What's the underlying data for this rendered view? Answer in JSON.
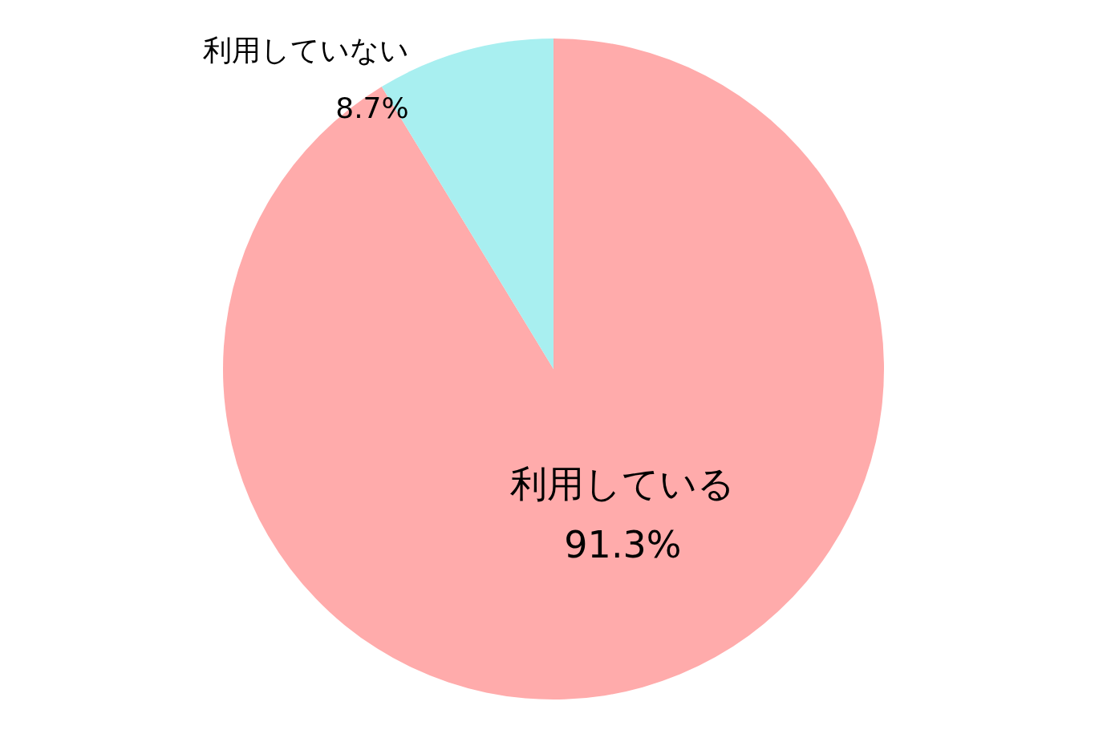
{
  "chart_data": {
    "type": "pie",
    "categories": [
      "利用している",
      "利用していない"
    ],
    "values": [
      91.3,
      8.7
    ],
    "colors": [
      "#ffabab",
      "#a8eff0"
    ],
    "value_labels": [
      "91.3%",
      "8.7%"
    ],
    "legend": false
  }
}
